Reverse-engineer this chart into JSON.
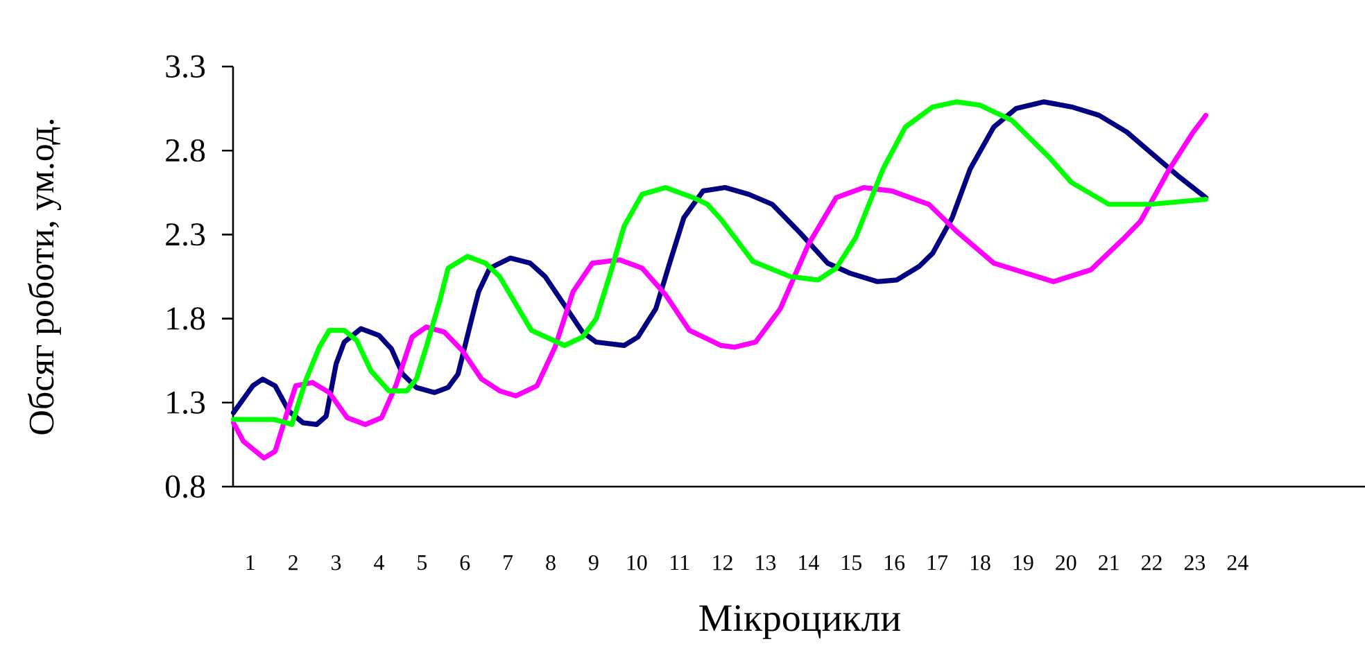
{
  "chart_data": {
    "type": "line",
    "xlabel": "Мікроцикли",
    "ylabel": "Обсяг роботи, ум.од.",
    "xlim": [
      0.6,
      27
    ],
    "ylim": [
      0.8,
      3.3
    ],
    "xticks": [
      1,
      2,
      3,
      4,
      5,
      6,
      7,
      8,
      9,
      10,
      11,
      12,
      13,
      14,
      15,
      16,
      17,
      18,
      19,
      20,
      21,
      22,
      23,
      24
    ],
    "yticks": [
      0.8,
      1.3,
      1.8,
      2.3,
      2.8,
      3.3
    ],
    "grid": false,
    "marker": "none",
    "line_style": "solid",
    "series": [
      {
        "color": "#000080",
        "x": [
          0.61,
          1.06,
          1.29,
          1.58,
          1.9,
          2.23,
          2.55,
          2.77,
          3.0,
          3.19,
          3.58,
          4.0,
          4.29,
          4.55,
          4.87,
          5.29,
          5.61,
          5.84,
          6.16,
          6.32,
          6.58,
          7.06,
          7.52,
          7.87,
          8.32,
          8.74,
          9.06,
          9.71,
          10.03,
          10.45,
          10.77,
          11.1,
          11.55,
          12.06,
          12.61,
          13.16,
          13.81,
          14.45,
          14.97,
          15.61,
          16.06,
          16.58,
          16.9,
          17.35,
          17.77,
          18.32,
          18.84,
          19.48,
          20.13,
          20.77,
          21.42,
          22.06,
          22.61,
          23.26
        ],
        "values": [
          1.24,
          1.4,
          1.44,
          1.4,
          1.25,
          1.18,
          1.17,
          1.22,
          1.53,
          1.66,
          1.74,
          1.7,
          1.62,
          1.47,
          1.39,
          1.36,
          1.39,
          1.47,
          1.8,
          1.96,
          2.1,
          2.16,
          2.13,
          2.05,
          1.88,
          1.72,
          1.66,
          1.64,
          1.69,
          1.86,
          2.13,
          2.4,
          2.56,
          2.58,
          2.54,
          2.48,
          2.31,
          2.13,
          2.07,
          2.02,
          2.03,
          2.11,
          2.19,
          2.4,
          2.69,
          2.94,
          3.05,
          3.09,
          3.06,
          3.01,
          2.91,
          2.77,
          2.65,
          2.52
        ]
      },
      {
        "color": "#ff00ff",
        "x": [
          0.61,
          0.84,
          1.32,
          1.58,
          1.81,
          2.06,
          2.45,
          2.84,
          3.26,
          3.68,
          4.06,
          4.39,
          4.77,
          5.1,
          5.52,
          5.94,
          6.39,
          6.81,
          7.19,
          7.68,
          8.1,
          8.52,
          8.97,
          9.61,
          10.13,
          10.68,
          11.23,
          11.97,
          12.29,
          12.77,
          13.35,
          14.0,
          14.65,
          15.29,
          15.94,
          16.81,
          17.45,
          18.32,
          19.71,
          20.58,
          21.32,
          21.74,
          22.39,
          22.94,
          23.26
        ],
        "values": [
          1.18,
          1.07,
          0.97,
          1.01,
          1.2,
          1.4,
          1.42,
          1.36,
          1.21,
          1.17,
          1.21,
          1.4,
          1.69,
          1.75,
          1.72,
          1.61,
          1.44,
          1.37,
          1.34,
          1.4,
          1.63,
          1.96,
          2.13,
          2.15,
          2.1,
          1.94,
          1.73,
          1.64,
          1.63,
          1.66,
          1.86,
          2.24,
          2.52,
          2.58,
          2.56,
          2.48,
          2.32,
          2.13,
          2.02,
          2.09,
          2.27,
          2.38,
          2.68,
          2.9,
          3.01
        ]
      },
      {
        "color": "#00ff00",
        "x": [
          0.61,
          1.55,
          1.97,
          2.29,
          2.61,
          2.84,
          3.19,
          3.48,
          3.81,
          4.23,
          4.65,
          4.87,
          5.1,
          5.42,
          5.61,
          6.06,
          6.48,
          6.81,
          7.55,
          8.32,
          8.74,
          9.06,
          9.39,
          9.71,
          10.13,
          10.68,
          11.32,
          11.65,
          11.97,
          12.71,
          13.58,
          14.23,
          14.65,
          15.1,
          15.74,
          16.26,
          16.9,
          17.45,
          18.0,
          18.74,
          19.61,
          20.13,
          21.0,
          21.97,
          23.26
        ],
        "values": [
          1.2,
          1.2,
          1.17,
          1.43,
          1.63,
          1.73,
          1.73,
          1.67,
          1.49,
          1.37,
          1.37,
          1.44,
          1.63,
          1.91,
          2.1,
          2.17,
          2.13,
          2.05,
          1.73,
          1.64,
          1.69,
          1.8,
          2.07,
          2.35,
          2.54,
          2.58,
          2.52,
          2.48,
          2.39,
          2.14,
          2.05,
          2.03,
          2.1,
          2.28,
          2.69,
          2.94,
          3.06,
          3.09,
          3.07,
          2.98,
          2.76,
          2.61,
          2.48,
          2.48,
          2.51
        ]
      }
    ]
  }
}
